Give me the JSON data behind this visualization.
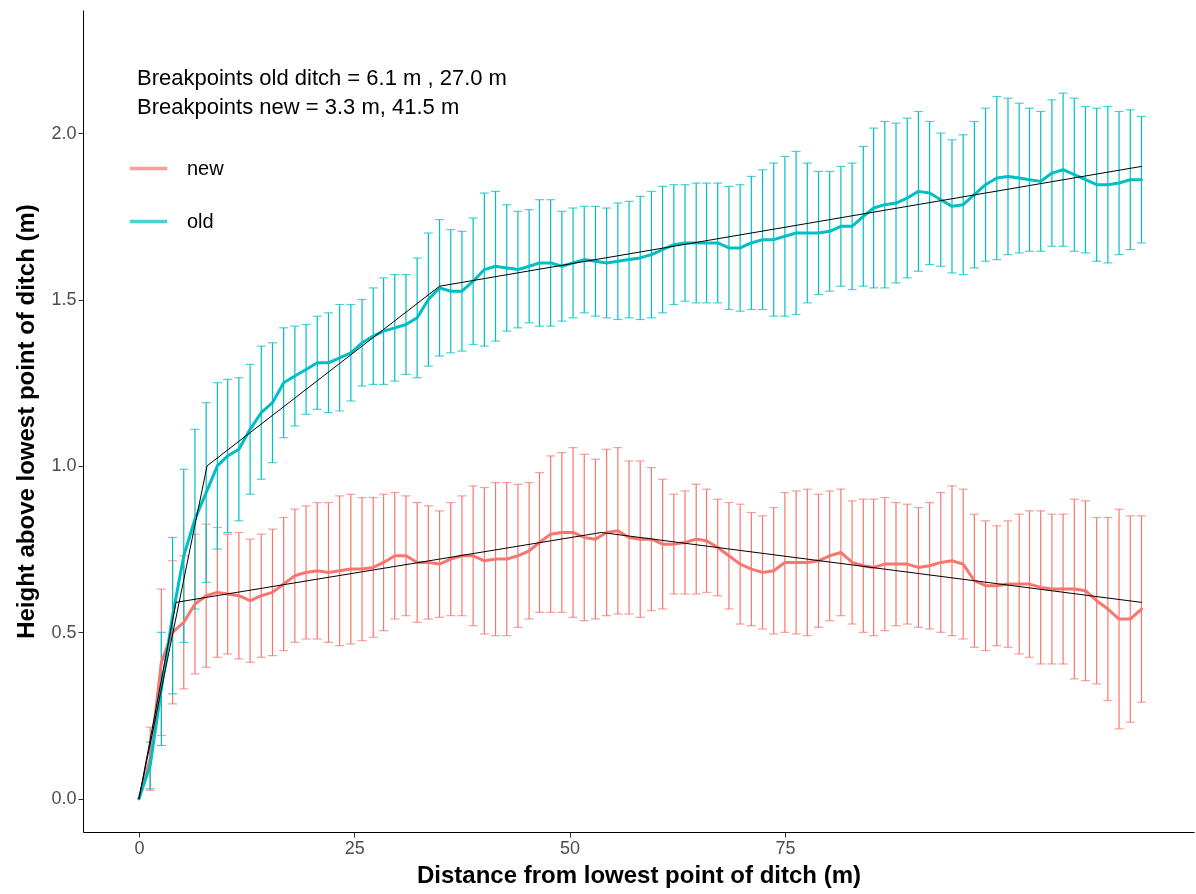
{
  "chart_data": {
    "type": "line",
    "xlabel": "Distance from lowest point of ditch (m)",
    "ylabel": "Height above lowest point of ditch (m)",
    "annotations": [
      "Breakpoints old ditch = 6.1 m , 27.0 m",
      "Breakpoints new = 3.3 m, 41.5 m"
    ],
    "xlim": [
      -6.5,
      122.5
    ],
    "ylim": [
      -0.1,
      2.37
    ],
    "xticks": [
      0,
      25,
      50,
      75
    ],
    "yticks": [
      {
        "value": 0,
        "label": "0.0"
      },
      {
        "value": 0.5,
        "label": "0.5"
      },
      {
        "value": 1,
        "label": "1.0"
      },
      {
        "value": 1.5,
        "label": "1.5"
      },
      {
        "value": 2,
        "label": "2.0"
      }
    ],
    "legend": "top left",
    "marker": "none",
    "line_style": "solid",
    "x": [
      0,
      1.3,
      2.6,
      3.9,
      5.2,
      6.5,
      7.8,
      9.1,
      10.3,
      11.6,
      12.9,
      14.2,
      15.5,
      16.8,
      18.1,
      19.4,
      20.7,
      22.0,
      23.3,
      24.6,
      25.9,
      27.2,
      28.4,
      29.7,
      31.0,
      32.3,
      33.6,
      34.9,
      36.2,
      37.5,
      38.8,
      40.1,
      41.4,
      42.7,
      44.0,
      45.3,
      46.5,
      47.8,
      49.1,
      50.4,
      51.7,
      53.0,
      54.3,
      55.6,
      56.9,
      58.2,
      59.5,
      60.8,
      62.1,
      63.4,
      64.7,
      65.9,
      67.2,
      68.5,
      69.8,
      71.1,
      72.4,
      73.7,
      75.0,
      76.3,
      77.6,
      78.9,
      80.2,
      81.5,
      82.8,
      84.1,
      85.3,
      86.6,
      87.9,
      89.2,
      90.5,
      91.8,
      93.1,
      94.4,
      95.7,
      97.0,
      98.3,
      99.6,
      100.9,
      102.2,
      103.4,
      104.7,
      106.0,
      107.3,
      108.6,
      109.9,
      111.2,
      112.5,
      113.8,
      115.1,
      116.4
    ],
    "series": [
      {
        "name": "new",
        "color": "#f8766d",
        "values": [
          0,
          0.12,
          0.41,
          0.5,
          0.53,
          0.585,
          0.61,
          0.62,
          0.615,
          0.61,
          0.595,
          0.61,
          0.62,
          0.645,
          0.67,
          0.68,
          0.685,
          0.68,
          0.685,
          0.69,
          0.69,
          0.695,
          0.71,
          0.73,
          0.73,
          0.71,
          0.71,
          0.705,
          0.72,
          0.73,
          0.73,
          0.715,
          0.72,
          0.72,
          0.73,
          0.745,
          0.77,
          0.795,
          0.8,
          0.8,
          0.785,
          0.78,
          0.8,
          0.805,
          0.785,
          0.78,
          0.78,
          0.765,
          0.765,
          0.77,
          0.78,
          0.775,
          0.755,
          0.73,
          0.705,
          0.69,
          0.68,
          0.685,
          0.71,
          0.71,
          0.71,
          0.715,
          0.73,
          0.74,
          0.71,
          0.7,
          0.695,
          0.705,
          0.705,
          0.705,
          0.695,
          0.7,
          0.71,
          0.715,
          0.705,
          0.655,
          0.64,
          0.64,
          0.645,
          0.645,
          0.645,
          0.635,
          0.63,
          0.63,
          0.63,
          0.625,
          0.595,
          0.57,
          0.54,
          0.54,
          0.57
        ],
        "errors": [
          null,
          0.095,
          0.22,
          0.215,
          0.2,
          0.21,
          0.215,
          0.195,
          0.18,
          0.19,
          0.185,
          0.185,
          0.19,
          0.2,
          0.2,
          0.2,
          0.205,
          0.21,
          0.225,
          0.225,
          0.215,
          0.21,
          0.205,
          0.19,
          0.18,
          0.18,
          0.17,
          0.16,
          0.17,
          0.18,
          0.21,
          0.22,
          0.23,
          0.23,
          0.215,
          0.205,
          0.21,
          0.235,
          0.24,
          0.255,
          0.25,
          0.24,
          0.25,
          0.25,
          0.23,
          0.235,
          0.215,
          0.195,
          0.15,
          0.155,
          0.165,
          0.155,
          0.145,
          0.16,
          0.18,
          0.17,
          0.17,
          0.19,
          0.21,
          0.215,
          0.22,
          0.2,
          0.195,
          0.19,
          0.185,
          0.2,
          0.205,
          0.2,
          0.185,
          0.18,
          0.18,
          0.19,
          0.21,
          0.225,
          0.225,
          0.2,
          0.195,
          0.18,
          0.19,
          0.21,
          0.22,
          0.23,
          0.225,
          0.225,
          0.27,
          0.27,
          0.25,
          0.275,
          0.33,
          0.31,
          0.28
        ]
      },
      {
        "name": "old",
        "color": "#00bfc4",
        "values": [
          0,
          0.1,
          0.33,
          0.55,
          0.73,
          0.84,
          0.92,
          1.0,
          1.03,
          1.05,
          1.11,
          1.16,
          1.19,
          1.25,
          1.27,
          1.29,
          1.31,
          1.31,
          1.325,
          1.34,
          1.37,
          1.39,
          1.405,
          1.415,
          1.425,
          1.445,
          1.5,
          1.535,
          1.525,
          1.525,
          1.555,
          1.59,
          1.6,
          1.595,
          1.59,
          1.6,
          1.61,
          1.61,
          1.6,
          1.61,
          1.62,
          1.615,
          1.61,
          1.615,
          1.62,
          1.625,
          1.635,
          1.65,
          1.665,
          1.67,
          1.67,
          1.67,
          1.67,
          1.655,
          1.655,
          1.67,
          1.68,
          1.68,
          1.69,
          1.7,
          1.7,
          1.7,
          1.705,
          1.72,
          1.72,
          1.75,
          1.775,
          1.785,
          1.79,
          1.805,
          1.825,
          1.82,
          1.8,
          1.78,
          1.785,
          1.815,
          1.845,
          1.865,
          1.87,
          1.865,
          1.86,
          1.855,
          1.88,
          1.89,
          1.875,
          1.86,
          1.845,
          1.845,
          1.85,
          1.86,
          1.86
        ],
        "errors": [
          null,
          0.07,
          0.17,
          0.235,
          0.26,
          0.27,
          0.27,
          0.25,
          0.23,
          0.215,
          0.195,
          0.2,
          0.18,
          0.165,
          0.15,
          0.135,
          0.14,
          0.15,
          0.16,
          0.145,
          0.13,
          0.145,
          0.16,
          0.16,
          0.15,
          0.18,
          0.2,
          0.205,
          0.185,
          0.18,
          0.19,
          0.23,
          0.225,
          0.19,
          0.175,
          0.17,
          0.19,
          0.19,
          0.165,
          0.165,
          0.16,
          0.165,
          0.165,
          0.175,
          0.175,
          0.185,
          0.19,
          0.19,
          0.18,
          0.175,
          0.18,
          0.18,
          0.18,
          0.185,
          0.19,
          0.2,
          0.21,
          0.23,
          0.24,
          0.245,
          0.21,
          0.185,
          0.18,
          0.18,
          0.19,
          0.21,
          0.24,
          0.25,
          0.24,
          0.24,
          0.24,
          0.215,
          0.2,
          0.2,
          0.21,
          0.22,
          0.23,
          0.245,
          0.235,
          0.225,
          0.215,
          0.21,
          0.22,
          0.23,
          0.23,
          0.22,
          0.23,
          0.235,
          0.215,
          0.21,
          0.19
        ]
      },
      {
        "color": "#000000",
        "x": [
          0,
          7.9,
          34.9,
          116.4
        ],
        "values": [
          0,
          1.0,
          1.54,
          1.9
        ]
      },
      {
        "color": "#000000",
        "x": [
          0,
          4.3,
          53.7,
          116.4
        ],
        "values": [
          0,
          0.59,
          0.8,
          0.59
        ]
      }
    ]
  }
}
